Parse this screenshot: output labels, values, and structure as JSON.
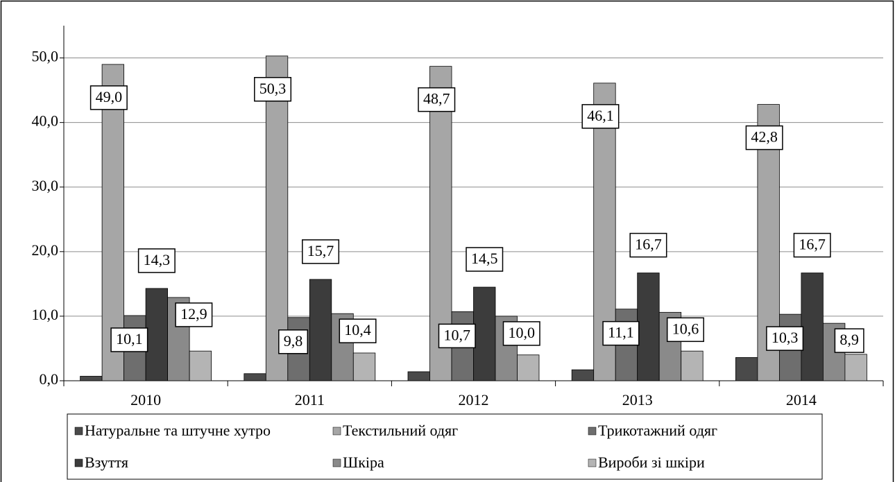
{
  "chart_data": {
    "type": "bar",
    "categories": [
      "2010",
      "2011",
      "2012",
      "2013",
      "2014"
    ],
    "series": [
      {
        "name": "Натуральне та штучне хутро",
        "color": "#4a4a4a",
        "values": [
          0.7,
          1.1,
          1.4,
          1.7,
          3.6
        ]
      },
      {
        "name": "Текстильний одяг",
        "color": "#a6a6a6",
        "values": [
          49.0,
          50.3,
          48.7,
          46.1,
          42.8
        ],
        "value_labels": [
          "49,0",
          "50,3",
          "48,7",
          "46,1",
          "42,8"
        ]
      },
      {
        "name": "Трикотажний одяг",
        "color": "#6e6e6e",
        "values": [
          10.1,
          9.8,
          10.7,
          11.1,
          10.3
        ],
        "value_labels": [
          "10,1",
          "9,8",
          "10,7",
          "11,1",
          "10,3"
        ]
      },
      {
        "name": "Взуття",
        "color": "#3c3c3c",
        "values": [
          14.3,
          15.7,
          14.5,
          16.7,
          16.7
        ],
        "value_labels": [
          "14,3",
          "15,7",
          "14,5",
          "16,7",
          "16,7"
        ]
      },
      {
        "name": "Шкіра",
        "color": "#8a8a8a",
        "values": [
          12.9,
          10.4,
          10.0,
          10.6,
          8.9
        ],
        "value_labels": [
          "12,9",
          "10,4",
          "10,0",
          "10,6",
          "8,9"
        ]
      },
      {
        "name": "Вироби зі шкіри",
        "color": "#b4b4b4",
        "values": [
          4.6,
          4.3,
          4.0,
          4.6,
          4.1
        ]
      }
    ],
    "ylim": [
      0,
      55
    ],
    "yticks": [
      {
        "value": 0,
        "label": "0,0"
      },
      {
        "value": 10,
        "label": "10,0"
      },
      {
        "value": 20,
        "label": "20,0"
      },
      {
        "value": 30,
        "label": "30,0"
      },
      {
        "value": 40,
        "label": "40,0"
      },
      {
        "value": 50,
        "label": "50,0"
      }
    ],
    "grid": true
  }
}
